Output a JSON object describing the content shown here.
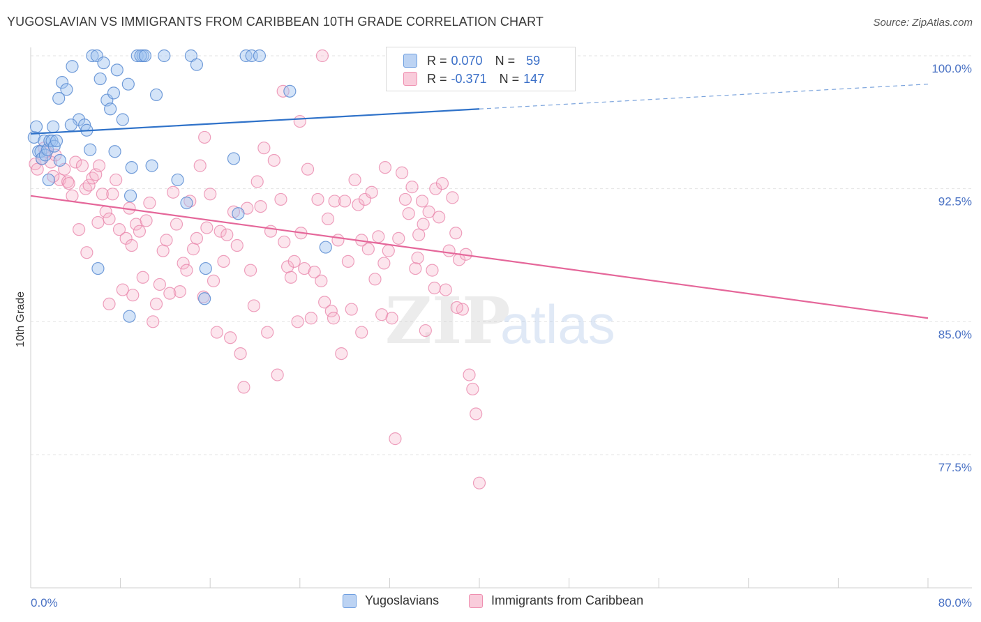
{
  "header": {
    "title": "YUGOSLAVIAN VS IMMIGRANTS FROM CARIBBEAN 10TH GRADE CORRELATION CHART",
    "source": "Source: ZipAtlas.com"
  },
  "legend": {
    "rows": [
      {
        "r_key": "R = ",
        "r_value": "0.070",
        "n_key": "N = ",
        "n_value": "59",
        "color": "#6f9fe0"
      },
      {
        "r_key": "R = ",
        "r_value": "-0.371",
        "n_key": "N = ",
        "n_value": "147",
        "color": "#ef8fb0"
      }
    ]
  },
  "bottom_legend": {
    "items": [
      {
        "label": "Yugoslavians",
        "color": "#6f9fe0"
      },
      {
        "label": "Immigrants from Caribbean",
        "color": "#ef8fb0"
      }
    ]
  },
  "watermark": {
    "zip": "ZIP",
    "atlas": "atlas"
  },
  "chart_data": {
    "type": "scatter",
    "title": "YUGOSLAVIAN VS IMMIGRANTS FROM CARIBBEAN 10TH GRADE CORRELATION CHART",
    "xlabel": "",
    "ylabel": "10th Grade",
    "xlim": [
      0,
      80
    ],
    "ylim": [
      70,
      100.5
    ],
    "x_tick_labels": [
      "0.0%",
      "80.0%"
    ],
    "y_ticks": [
      77.5,
      85.0,
      92.5,
      100.0
    ],
    "y_tick_labels": [
      "77.5%",
      "85.0%",
      "92.5%",
      "100.0%"
    ],
    "grid": true,
    "legend_position": "top-center",
    "series": [
      {
        "name": "Yugoslavians",
        "color": "#6f9fe0",
        "trend": {
          "x0": 0,
          "y0": 95.6,
          "x1": 40,
          "y1": 97.0,
          "dash_to_x": 80,
          "dash_to_y": 98.4
        },
        "points": [
          [
            0.3,
            95.4
          ],
          [
            0.5,
            96.0
          ],
          [
            0.7,
            94.6
          ],
          [
            0.9,
            94.6
          ],
          [
            1.0,
            94.2
          ],
          [
            1.2,
            95.2
          ],
          [
            1.3,
            94.4
          ],
          [
            1.5,
            94.7
          ],
          [
            1.7,
            95.2
          ],
          [
            1.9,
            95.2
          ],
          [
            2.0,
            96.0
          ],
          [
            2.1,
            94.9
          ],
          [
            2.3,
            95.2
          ],
          [
            2.5,
            97.6
          ],
          [
            2.8,
            98.5
          ],
          [
            3.2,
            98.1
          ],
          [
            3.7,
            99.4
          ],
          [
            4.3,
            96.4
          ],
          [
            4.8,
            96.1
          ],
          [
            5.0,
            95.8
          ],
          [
            5.3,
            94.7
          ],
          [
            5.5,
            100.0
          ],
          [
            5.9,
            100.0
          ],
          [
            6.2,
            98.7
          ],
          [
            6.5,
            99.6
          ],
          [
            6.8,
            97.5
          ],
          [
            7.1,
            97.0
          ],
          [
            7.4,
            97.9
          ],
          [
            7.7,
            99.2
          ],
          [
            8.2,
            96.4
          ],
          [
            8.7,
            98.4
          ],
          [
            9.0,
            93.7
          ],
          [
            8.9,
            92.1
          ],
          [
            9.5,
            100.0
          ],
          [
            10.0,
            100.0
          ],
          [
            9.8,
            100.0
          ],
          [
            10.2,
            100.0
          ],
          [
            10.8,
            93.8
          ],
          [
            11.2,
            97.8
          ],
          [
            11.9,
            100.0
          ],
          [
            13.1,
            93.0
          ],
          [
            13.9,
            91.7
          ],
          [
            14.3,
            100.0
          ],
          [
            14.8,
            99.5
          ],
          [
            15.5,
            86.3
          ],
          [
            15.6,
            88.0
          ],
          [
            18.1,
            94.2
          ],
          [
            18.5,
            91.1
          ],
          [
            19.2,
            100.0
          ],
          [
            19.7,
            100.0
          ],
          [
            20.4,
            100.0
          ],
          [
            23.1,
            98.0
          ],
          [
            26.3,
            89.2
          ],
          [
            6.0,
            88.0
          ],
          [
            8.8,
            85.3
          ],
          [
            3.6,
            96.1
          ],
          [
            7.5,
            94.6
          ],
          [
            2.6,
            94.1
          ],
          [
            1.6,
            93.0
          ]
        ]
      },
      {
        "name": "Immigrants from Caribbean",
        "color": "#ef8fb0",
        "trend": {
          "x0": 0,
          "y0": 92.1,
          "x1": 80,
          "y1": 85.2
        },
        "points": [
          [
            0.4,
            93.9
          ],
          [
            0.6,
            93.6
          ],
          [
            1.0,
            94.2
          ],
          [
            1.4,
            94.6
          ],
          [
            1.8,
            94.0
          ],
          [
            2.2,
            94.4
          ],
          [
            2.6,
            93.0
          ],
          [
            3.0,
            93.6
          ],
          [
            3.3,
            92.9
          ],
          [
            3.7,
            92.1
          ],
          [
            4.0,
            94.0
          ],
          [
            4.3,
            90.2
          ],
          [
            4.6,
            93.8
          ],
          [
            4.9,
            92.5
          ],
          [
            5.2,
            92.7
          ],
          [
            5.5,
            93.1
          ],
          [
            5.8,
            93.3
          ],
          [
            6.1,
            93.8
          ],
          [
            6.4,
            92.2
          ],
          [
            6.7,
            91.2
          ],
          [
            7.0,
            90.8
          ],
          [
            7.3,
            92.2
          ],
          [
            7.6,
            93.0
          ],
          [
            7.9,
            90.2
          ],
          [
            8.2,
            86.8
          ],
          [
            8.5,
            89.7
          ],
          [
            8.8,
            91.4
          ],
          [
            9.1,
            86.5
          ],
          [
            9.4,
            90.5
          ],
          [
            9.7,
            90.1
          ],
          [
            10.0,
            87.5
          ],
          [
            10.3,
            90.7
          ],
          [
            10.6,
            91.7
          ],
          [
            10.9,
            85.0
          ],
          [
            11.2,
            86.0
          ],
          [
            11.5,
            87.1
          ],
          [
            11.8,
            89.0
          ],
          [
            12.1,
            89.6
          ],
          [
            12.4,
            86.6
          ],
          [
            12.7,
            92.3
          ],
          [
            13.0,
            90.5
          ],
          [
            13.3,
            86.7
          ],
          [
            13.6,
            88.3
          ],
          [
            13.9,
            87.9
          ],
          [
            14.2,
            91.8
          ],
          [
            14.5,
            89.1
          ],
          [
            14.8,
            89.7
          ],
          [
            15.1,
            93.8
          ],
          [
            15.4,
            86.4
          ],
          [
            15.7,
            90.3
          ],
          [
            16.0,
            92.2
          ],
          [
            16.3,
            87.3
          ],
          [
            16.6,
            84.4
          ],
          [
            16.9,
            90.1
          ],
          [
            17.2,
            88.4
          ],
          [
            17.5,
            89.9
          ],
          [
            17.8,
            84.1
          ],
          [
            18.1,
            91.2
          ],
          [
            18.4,
            89.3
          ],
          [
            18.7,
            83.2
          ],
          [
            19.0,
            81.3
          ],
          [
            19.3,
            91.4
          ],
          [
            19.6,
            87.9
          ],
          [
            19.9,
            85.9
          ],
          [
            20.2,
            92.9
          ],
          [
            20.5,
            91.5
          ],
          [
            20.8,
            94.8
          ],
          [
            21.1,
            84.4
          ],
          [
            21.4,
            90.1
          ],
          [
            21.7,
            94.1
          ],
          [
            22.0,
            82.0
          ],
          [
            22.3,
            91.9
          ],
          [
            22.6,
            89.5
          ],
          [
            22.9,
            88.1
          ],
          [
            23.2,
            87.5
          ],
          [
            23.5,
            88.4
          ],
          [
            23.8,
            85.0
          ],
          [
            24.1,
            90.0
          ],
          [
            24.4,
            88.0
          ],
          [
            24.7,
            93.6
          ],
          [
            25.0,
            85.2
          ],
          [
            25.3,
            87.8
          ],
          [
            25.6,
            91.9
          ],
          [
            25.9,
            87.3
          ],
          [
            26.2,
            86.1
          ],
          [
            26.5,
            90.8
          ],
          [
            26.8,
            85.6
          ],
          [
            27.1,
            91.8
          ],
          [
            27.4,
            89.6
          ],
          [
            27.7,
            83.2
          ],
          [
            28.0,
            91.8
          ],
          [
            28.3,
            88.4
          ],
          [
            28.6,
            85.7
          ],
          [
            28.9,
            93.0
          ],
          [
            29.2,
            91.6
          ],
          [
            29.5,
            84.4
          ],
          [
            29.8,
            91.9
          ],
          [
            30.1,
            89.1
          ],
          [
            30.4,
            92.3
          ],
          [
            30.7,
            87.4
          ],
          [
            31.0,
            89.8
          ],
          [
            31.3,
            85.4
          ],
          [
            31.6,
            93.7
          ],
          [
            31.9,
            89.0
          ],
          [
            32.2,
            85.2
          ],
          [
            32.5,
            78.4
          ],
          [
            32.8,
            89.7
          ],
          [
            33.1,
            93.4
          ],
          [
            33.4,
            91.9
          ],
          [
            33.7,
            91.1
          ],
          [
            34.0,
            92.6
          ],
          [
            34.3,
            88.0
          ],
          [
            34.6,
            89.9
          ],
          [
            34.9,
            91.8
          ],
          [
            35.2,
            84.5
          ],
          [
            35.5,
            91.2
          ],
          [
            35.8,
            87.9
          ],
          [
            36.1,
            92.5
          ],
          [
            36.4,
            90.9
          ],
          [
            36.7,
            92.8
          ],
          [
            37.0,
            86.8
          ],
          [
            37.3,
            89.0
          ],
          [
            37.6,
            92.0
          ],
          [
            37.9,
            90.0
          ],
          [
            38.2,
            88.5
          ],
          [
            38.5,
            85.7
          ],
          [
            38.8,
            88.8
          ],
          [
            39.1,
            82.0
          ],
          [
            39.4,
            81.2
          ],
          [
            39.7,
            79.8
          ],
          [
            40.0,
            75.9
          ],
          [
            29.5,
            89.6
          ],
          [
            34.5,
            88.6
          ],
          [
            24.0,
            96.3
          ],
          [
            15.5,
            95.4
          ],
          [
            22.5,
            98.0
          ],
          [
            26.0,
            100.0
          ],
          [
            1.2,
            94.8
          ],
          [
            2.0,
            93.2
          ],
          [
            3.4,
            92.8
          ],
          [
            5.0,
            88.9
          ],
          [
            6.0,
            90.6
          ],
          [
            7.0,
            86.0
          ],
          [
            9.0,
            89.3
          ],
          [
            27.0,
            85.2
          ],
          [
            31.5,
            88.3
          ],
          [
            35.0,
            90.5
          ],
          [
            36.0,
            86.9
          ],
          [
            38.0,
            85.8
          ]
        ]
      }
    ]
  }
}
